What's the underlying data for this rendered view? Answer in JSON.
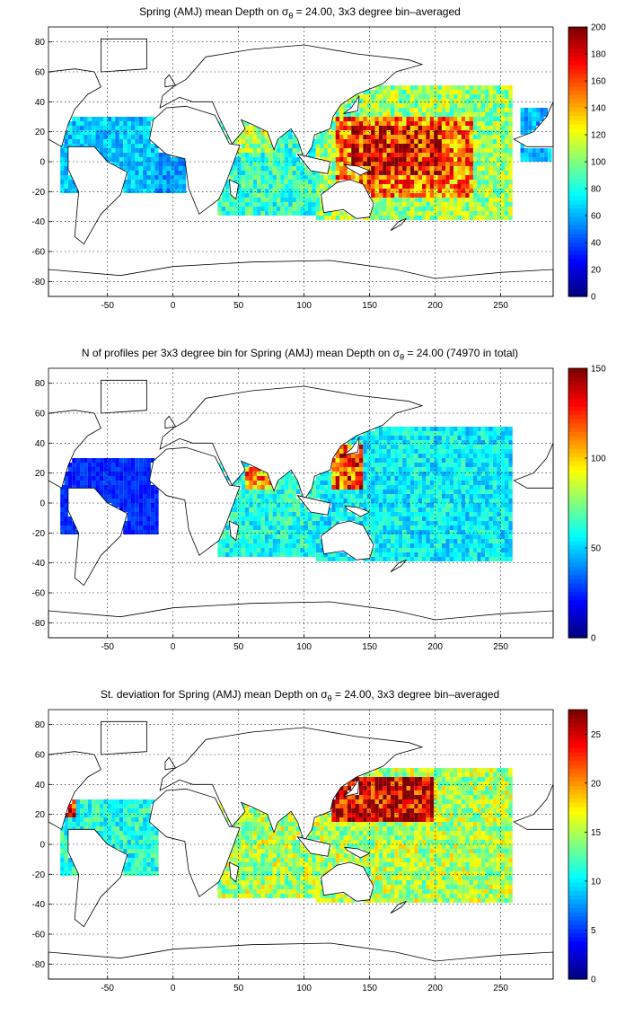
{
  "colormap": "jet",
  "background_color": "#ffffff",
  "land_outline_color": "#000000",
  "grid": "dotted",
  "xlim": [
    -95,
    290
  ],
  "ylim": [
    -90,
    90
  ],
  "x_ticks": [
    "-50",
    "0",
    "50",
    "100",
    "150",
    "200",
    "250"
  ],
  "y_ticks": [
    "80",
    "60",
    "40",
    "20",
    "0",
    "-20",
    "-40",
    "-60",
    "-80"
  ],
  "panels": [
    {
      "title_pre": "Spring (AMJ) mean Depth on σ",
      "title_sub": "θ",
      "title_post": " = 24.00, 3x3 degree bin–averaged",
      "colorbar_ticks": [
        "200",
        "180",
        "160",
        "140",
        "120",
        "100",
        "80",
        "60",
        "40",
        "20",
        "0"
      ]
    },
    {
      "title_pre": "N of profiles per 3x3 degree bin for Spring (AMJ) mean Depth on σ",
      "title_sub": "θ",
      "title_post": " = 24.00 (74970 in total)",
      "colorbar_ticks": [
        "150",
        "100",
        "50",
        "0"
      ]
    },
    {
      "title_pre": "St. deviation for Spring (AMJ) mean Depth on σ",
      "title_sub": "θ",
      "title_post": " = 24.00, 3x3 degree bin–averaged",
      "colorbar_ticks": [
        "25",
        "20",
        "15",
        "10",
        "5",
        "0"
      ]
    }
  ],
  "chart_data": [
    {
      "type": "heatmap",
      "title": "Spring (AMJ) mean Depth on σθ = 24.00, 3x3 degree bin–averaged",
      "xlim": [
        -95,
        290
      ],
      "ylim": [
        -90,
        90
      ],
      "colorbar_range": [
        0,
        200
      ],
      "bin_size_deg": 3,
      "regions": [
        {
          "lon": [
            -85,
            -10
          ],
          "lat": [
            -20,
            30
          ],
          "value": 65
        },
        {
          "lon": [
            -15,
            10
          ],
          "lat": [
            -20,
            5
          ],
          "value": 55
        },
        {
          "lon": [
            35,
            115
          ],
          "lat": [
            -35,
            28
          ],
          "value": 85
        },
        {
          "lon": [
            50,
            75
          ],
          "lat": [
            5,
            25
          ],
          "value": 110
        },
        {
          "lon": [
            110,
            260
          ],
          "lat": [
            -40,
            50
          ],
          "value": 105
        },
        {
          "lon": [
            125,
            230
          ],
          "lat": [
            -25,
            30
          ],
          "value": 150
        },
        {
          "lon": [
            135,
            205
          ],
          "lat": [
            -10,
            25
          ],
          "value": 175
        },
        {
          "lon": [
            265,
            290
          ],
          "lat": [
            0,
            35
          ],
          "value": 60
        }
      ]
    },
    {
      "type": "heatmap",
      "title": "N of profiles per 3x3 degree bin for Spring (AMJ) mean Depth on σθ = 24.00 (74970 in total)",
      "xlim": [
        -95,
        290
      ],
      "ylim": [
        -90,
        90
      ],
      "colorbar_range": [
        0,
        150
      ],
      "total_profiles": 74970,
      "bin_size_deg": 3,
      "regions": [
        {
          "lon": [
            -85,
            -10
          ],
          "lat": [
            -20,
            30
          ],
          "value": 25
        },
        {
          "lon": [
            35,
            115
          ],
          "lat": [
            -35,
            28
          ],
          "value": 60
        },
        {
          "lon": [
            110,
            260
          ],
          "lat": [
            -40,
            50
          ],
          "value": 55
        },
        {
          "lon": [
            120,
            145
          ],
          "lat": [
            10,
            40
          ],
          "value": 120
        },
        {
          "lon": [
            55,
            75
          ],
          "lat": [
            10,
            25
          ],
          "value": 110
        }
      ]
    },
    {
      "type": "heatmap",
      "title": "St. deviation for Spring (AMJ) mean Depth on σθ = 24.00, 3x3 degree bin–averaged",
      "xlim": [
        -95,
        290
      ],
      "ylim": [
        -90,
        90
      ],
      "colorbar_range": [
        0,
        27.5
      ],
      "bin_size_deg": 3,
      "regions": [
        {
          "lon": [
            -85,
            -10
          ],
          "lat": [
            -20,
            30
          ],
          "value": 11
        },
        {
          "lon": [
            35,
            115
          ],
          "lat": [
            -35,
            28
          ],
          "value": 15
        },
        {
          "lon": [
            110,
            260
          ],
          "lat": [
            -40,
            50
          ],
          "value": 15
        },
        {
          "lon": [
            120,
            200
          ],
          "lat": [
            15,
            45
          ],
          "value": 26
        },
        {
          "lon": [
            -90,
            -75
          ],
          "lat": [
            18,
            30
          ],
          "value": 24
        }
      ]
    }
  ]
}
